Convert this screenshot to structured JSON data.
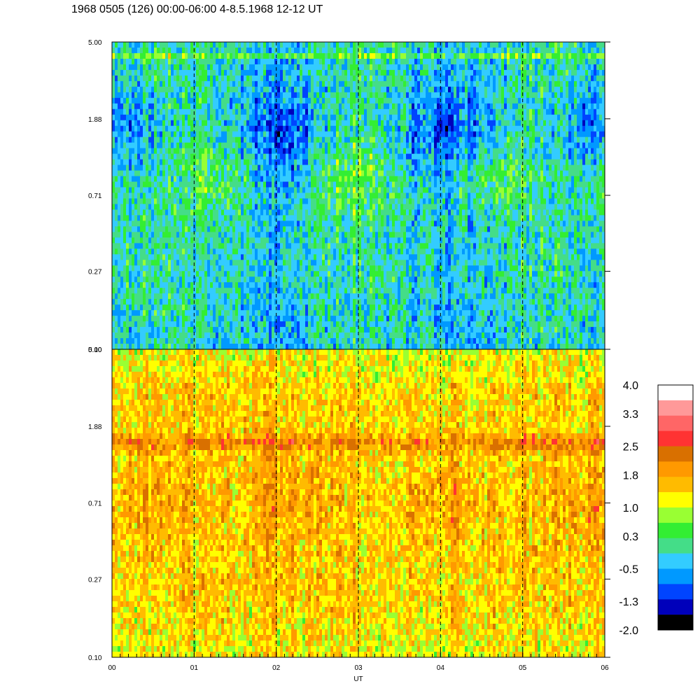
{
  "title": "1968 0505 (126) 00:00-06:00 4-8.5.1968  12-12 UT",
  "chart_data": {
    "type": "heatmap",
    "xlabel": "UT",
    "x_ticks": [
      "00",
      "01",
      "02",
      "03",
      "04",
      "05",
      "06"
    ],
    "x_range": [
      0,
      6
    ],
    "y_scale": "log",
    "panels": [
      {
        "y_ticks": [
          "5.00",
          "1.88",
          "0.71",
          "0.27",
          "0.10"
        ],
        "y_range": [
          0.1,
          5.0
        ],
        "dominant_level_range": [
          -1.3,
          1.0
        ]
      },
      {
        "y_ticks": [
          "5.00",
          "1.88",
          "0.71",
          "0.27",
          "0.10"
        ],
        "y_range": [
          0.1,
          5.0
        ],
        "dominant_level_range": [
          0.5,
          2.5
        ]
      }
    ],
    "dashed_gridlines_at": [
      1,
      2,
      3,
      4,
      5
    ],
    "colorbar": {
      "tick_labels": [
        "4.0",
        "3.3",
        "2.5",
        "1.8",
        "1.0",
        "0.3",
        "-0.5",
        "-1.3",
        "-2.0"
      ],
      "range": [
        -2.0,
        4.0
      ],
      "colors_top_to_bottom": [
        "#ffffff",
        "#ff9999",
        "#ff6666",
        "#ff3333",
        "#d97000",
        "#ff9900",
        "#ffbb00",
        "#ffff00",
        "#99ff33",
        "#33ee33",
        "#44dd88",
        "#33ccff",
        "#0099ff",
        "#0044ff",
        "#0000bb",
        "#000000"
      ]
    }
  }
}
